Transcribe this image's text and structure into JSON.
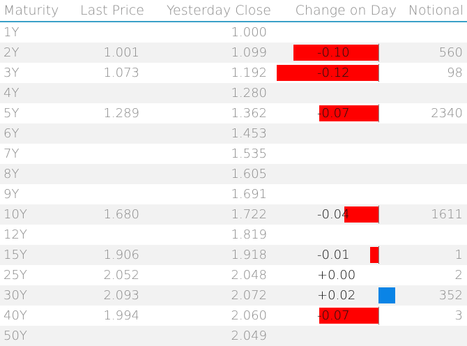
{
  "table": {
    "headers": {
      "maturity": "Maturity",
      "last_price": "Last Price",
      "yesterday_close": "Yesterday Close",
      "change_on_day": "Change on Day",
      "notional": "Notional"
    },
    "rows": [
      {
        "maturity": "1Y",
        "last_price": "",
        "yesterday_close": "1.000",
        "change": "",
        "change_value": null,
        "notional": ""
      },
      {
        "maturity": "2Y",
        "last_price": "1.001",
        "yesterday_close": "1.099",
        "change": "-0.10",
        "change_value": -0.1,
        "notional": "560"
      },
      {
        "maturity": "3Y",
        "last_price": "1.073",
        "yesterday_close": "1.192",
        "change": "-0.12",
        "change_value": -0.12,
        "notional": "98"
      },
      {
        "maturity": "4Y",
        "last_price": "",
        "yesterday_close": "1.280",
        "change": "",
        "change_value": null,
        "notional": ""
      },
      {
        "maturity": "5Y",
        "last_price": "1.289",
        "yesterday_close": "1.362",
        "change": "-0.07",
        "change_value": -0.07,
        "notional": "2340"
      },
      {
        "maturity": "6Y",
        "last_price": "",
        "yesterday_close": "1.453",
        "change": "",
        "change_value": null,
        "notional": ""
      },
      {
        "maturity": "7Y",
        "last_price": "",
        "yesterday_close": "1.535",
        "change": "",
        "change_value": null,
        "notional": ""
      },
      {
        "maturity": "8Y",
        "last_price": "",
        "yesterday_close": "1.605",
        "change": "",
        "change_value": null,
        "notional": ""
      },
      {
        "maturity": "9Y",
        "last_price": "",
        "yesterday_close": "1.691",
        "change": "",
        "change_value": null,
        "notional": ""
      },
      {
        "maturity": "10Y",
        "last_price": "1.680",
        "yesterday_close": "1.722",
        "change": "-0.04",
        "change_value": -0.04,
        "notional": "1611"
      },
      {
        "maturity": "12Y",
        "last_price": "",
        "yesterday_close": "1.819",
        "change": "",
        "change_value": null,
        "notional": ""
      },
      {
        "maturity": "15Y",
        "last_price": "1.906",
        "yesterday_close": "1.918",
        "change": "-0.01",
        "change_value": -0.01,
        "notional": "1"
      },
      {
        "maturity": "25Y",
        "last_price": "2.052",
        "yesterday_close": "2.048",
        "change": "+0.00",
        "change_value": 0.0,
        "notional": "2"
      },
      {
        "maturity": "30Y",
        "last_price": "2.093",
        "yesterday_close": "2.072",
        "change": "+0.02",
        "change_value": 0.02,
        "notional": "352"
      },
      {
        "maturity": "40Y",
        "last_price": "1.994",
        "yesterday_close": "2.060",
        "change": "-0.07",
        "change_value": -0.07,
        "notional": "3"
      },
      {
        "maturity": "50Y",
        "last_price": "",
        "yesterday_close": "2.049",
        "change": "",
        "change_value": null,
        "notional": ""
      }
    ]
  },
  "colors": {
    "negative_bar": "#ff0000",
    "positive_bar": "#0a84e6",
    "header_rule": "#3aa0c8",
    "alt_row": "#f2f2f2"
  }
}
